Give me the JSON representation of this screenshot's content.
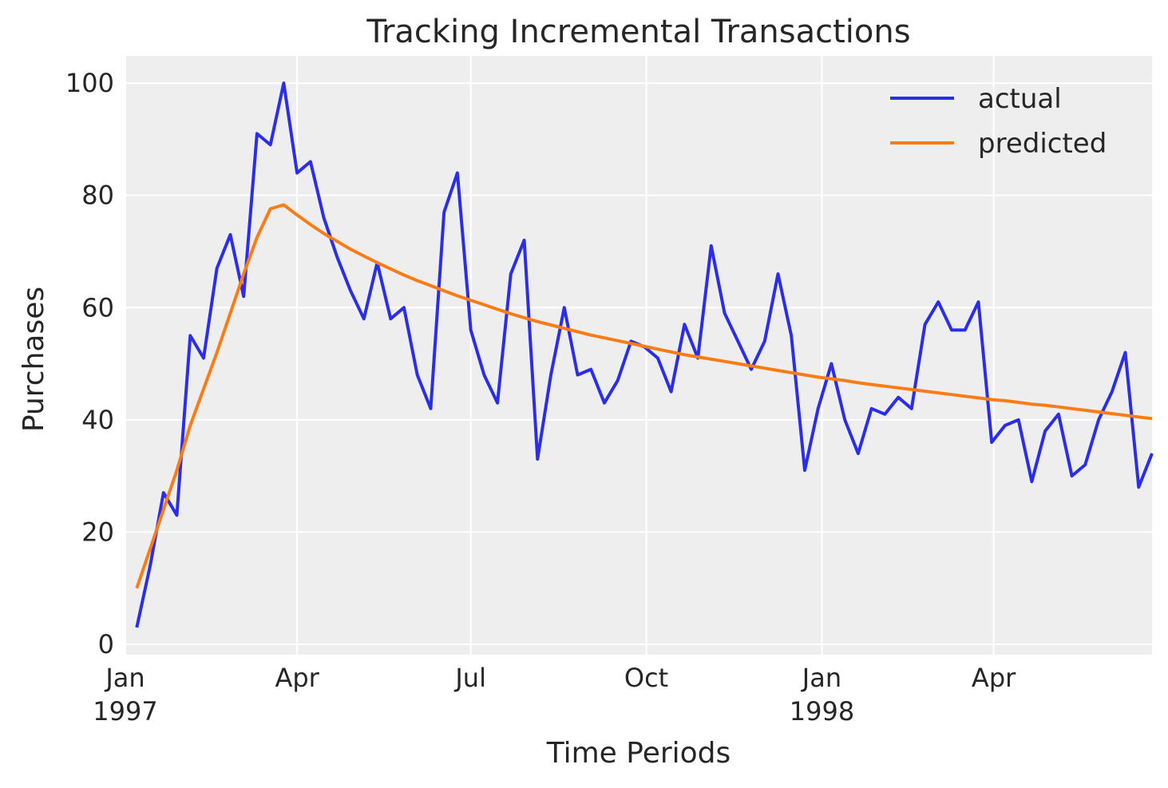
{
  "chart_data": {
    "type": "line",
    "title": "Tracking Incremental Transactions",
    "xlabel": "Time Periods",
    "ylabel": "Purchases",
    "xlim": [
      "1997-01-01",
      "1998-06-23"
    ],
    "ylim": [
      -1.85,
      104.85
    ],
    "grid": true,
    "legend_position": "top-right",
    "yticks": [
      0,
      20,
      40,
      60,
      80,
      100
    ],
    "xticks": [
      {
        "date": "1997-01-01",
        "label": "Jan",
        "sublabel": "1997"
      },
      {
        "date": "1997-04-01",
        "label": "Apr",
        "sublabel": ""
      },
      {
        "date": "1997-07-01",
        "label": "Jul",
        "sublabel": ""
      },
      {
        "date": "1997-10-01",
        "label": "Oct",
        "sublabel": ""
      },
      {
        "date": "1998-01-01",
        "label": "Jan",
        "sublabel": "1998"
      },
      {
        "date": "1998-04-01",
        "label": "Apr",
        "sublabel": ""
      }
    ],
    "x": [
      "1997-01-07",
      "1997-01-14",
      "1997-01-21",
      "1997-01-28",
      "1997-02-04",
      "1997-02-11",
      "1997-02-18",
      "1997-02-25",
      "1997-03-04",
      "1997-03-11",
      "1997-03-18",
      "1997-03-25",
      "1997-04-01",
      "1997-04-08",
      "1997-04-15",
      "1997-04-22",
      "1997-04-29",
      "1997-05-06",
      "1997-05-13",
      "1997-05-20",
      "1997-05-27",
      "1997-06-03",
      "1997-06-10",
      "1997-06-17",
      "1997-06-24",
      "1997-07-01",
      "1997-07-08",
      "1997-07-15",
      "1997-07-22",
      "1997-07-29",
      "1997-08-05",
      "1997-08-12",
      "1997-08-19",
      "1997-08-26",
      "1997-09-02",
      "1997-09-09",
      "1997-09-16",
      "1997-09-23",
      "1997-09-30",
      "1997-10-07",
      "1997-10-14",
      "1997-10-21",
      "1997-10-28",
      "1997-11-04",
      "1997-11-11",
      "1997-11-18",
      "1997-11-25",
      "1997-12-02",
      "1997-12-09",
      "1997-12-16",
      "1997-12-23",
      "1997-12-30",
      "1998-01-06",
      "1998-01-13",
      "1998-01-20",
      "1998-01-27",
      "1998-02-03",
      "1998-02-10",
      "1998-02-17",
      "1998-02-24",
      "1998-03-03",
      "1998-03-10",
      "1998-03-17",
      "1998-03-24",
      "1998-03-31",
      "1998-04-07",
      "1998-04-14",
      "1998-04-21",
      "1998-04-28",
      "1998-05-05",
      "1998-05-12",
      "1998-05-19",
      "1998-05-26",
      "1998-06-02",
      "1998-06-09",
      "1998-06-16",
      "1998-06-23"
    ],
    "series": [
      {
        "name": "actual",
        "color": "#2a2eec",
        "values": [
          3,
          14,
          27,
          23,
          55,
          51,
          67,
          73,
          62,
          91,
          89,
          100,
          84,
          86,
          76,
          69,
          63,
          58,
          68,
          58,
          60,
          48,
          42,
          77,
          84,
          56,
          48,
          43,
          66,
          72,
          33,
          48,
          60,
          48,
          49,
          43,
          47,
          54,
          53,
          51,
          45,
          57,
          51,
          71,
          59,
          54,
          49,
          54,
          66,
          55,
          31,
          42,
          50,
          40,
          34,
          42,
          41,
          44,
          42,
          57,
          61,
          56,
          56,
          61,
          36,
          39,
          40,
          29,
          38,
          41,
          30,
          32,
          40,
          45,
          52,
          28,
          34
        ]
      },
      {
        "name": "predicted",
        "color": "#fa7c17",
        "values": [
          10,
          17,
          24,
          31,
          39,
          45.5,
          52,
          59,
          66,
          72.5,
          77.6,
          78.3,
          76.5,
          74.8,
          73.2,
          71.8,
          70.4,
          69.2,
          68.0,
          66.9,
          65.8,
          64.8,
          63.9,
          63.0,
          62.1,
          61.3,
          60.5,
          59.7,
          58.9,
          58.2,
          57.5,
          56.9,
          56.3,
          55.7,
          55.1,
          54.6,
          54.1,
          53.6,
          53.1,
          52.6,
          52.1,
          51.6,
          51.2,
          50.8,
          50.4,
          50.0,
          49.6,
          49.2,
          48.8,
          48.4,
          48.0,
          47.6,
          47.3,
          47.0,
          46.6,
          46.3,
          46.0,
          45.7,
          45.4,
          45.1,
          44.8,
          44.5,
          44.2,
          43.9,
          43.6,
          43.4,
          43.1,
          42.8,
          42.6,
          42.3,
          42.0,
          41.7,
          41.4,
          41.1,
          40.8,
          40.5,
          40.2
        ]
      }
    ]
  }
}
